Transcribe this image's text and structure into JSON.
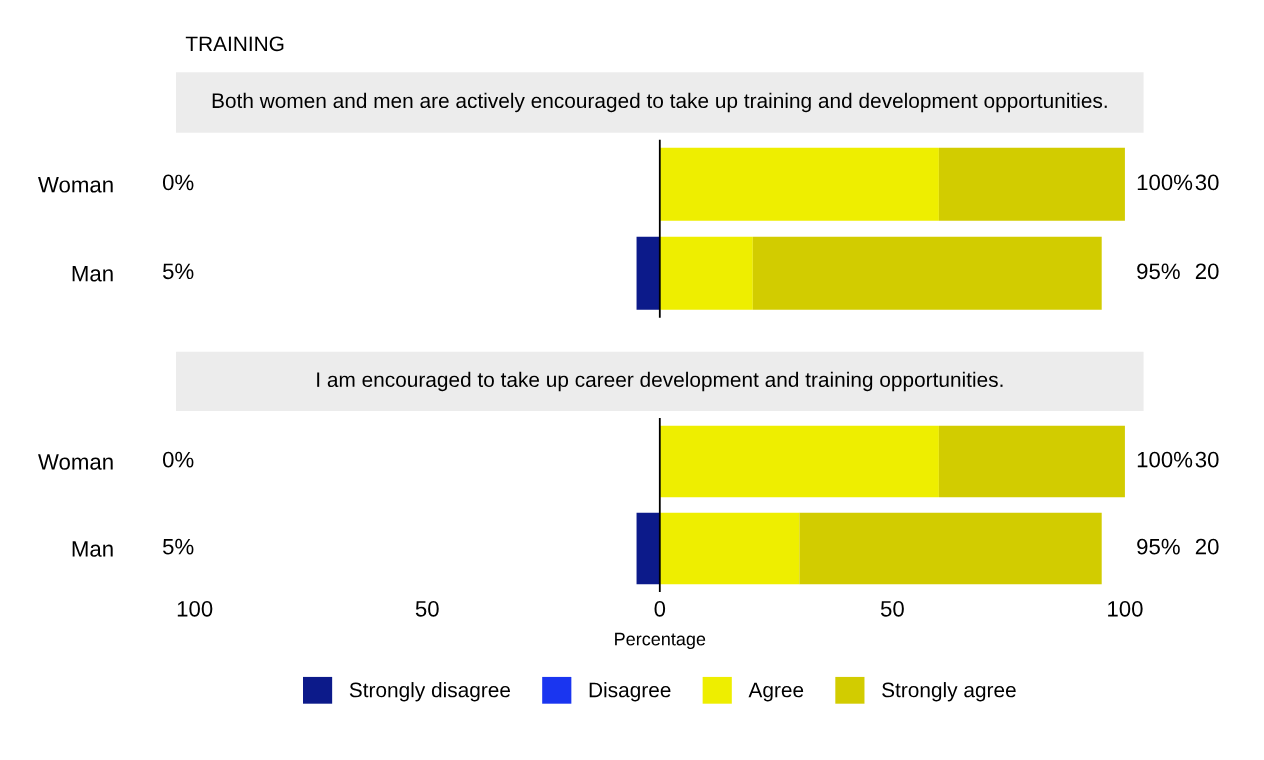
{
  "chart_data": [
    {
      "type": "bar",
      "orientation": "horizontal",
      "stacked": true,
      "title": "TRAINING",
      "subtitle": "Both women and men are actively encouraged to take up training and development opportunities.",
      "categories": [
        "Woman",
        "Man"
      ],
      "series": [
        {
          "color": "#0c1a8a",
          "values": [
            0,
            -5
          ]
        },
        {
          "color": "#1a35f0",
          "values": [
            0,
            0
          ]
        },
        {
          "color": "#eeee00",
          "values": [
            60,
            20
          ]
        },
        {
          "color": "#d2cc00",
          "values": [
            40,
            75
          ]
        }
      ],
      "xlim": [
        -100,
        100
      ],
      "tick_labels": "y",
      "ref_lines": [
        {
          "axis": "x",
          "value": 0,
          "color": "#000000"
        }
      ],
      "annotations": [
        "0%",
        "100%",
        "30",
        "5%",
        "95%",
        "20"
      ],
      "grid": false,
      "legend": false
    },
    {
      "type": "bar",
      "orientation": "horizontal",
      "stacked": true,
      "subtitle": "I am encouraged to take up career development and training opportunities.",
      "categories": [
        "Woman",
        "Man"
      ],
      "series": [
        {
          "name": "Strongly disagree",
          "color": "#0c1a8a",
          "values": [
            0,
            -5
          ]
        },
        {
          "name": "Disagree",
          "color": "#1a35f0",
          "values": [
            0,
            0
          ]
        },
        {
          "name": "Agree",
          "color": "#eeee00",
          "values": [
            60,
            30
          ]
        },
        {
          "name": "Strongly agree",
          "color": "#d2cc00",
          "values": [
            40,
            65
          ]
        }
      ],
      "xlim": [
        -100,
        100
      ],
      "xticks": [
        {
          "value": -100,
          "label": "100"
        },
        {
          "value": -50,
          "label": "50"
        },
        0,
        50,
        100
      ],
      "xlabel": "Percentage",
      "ref_lines": [
        {
          "axis": "x",
          "value": 0,
          "color": "#000000"
        }
      ],
      "annotations": [
        "0%",
        "100%",
        "30",
        "5%",
        "95%",
        "20"
      ],
      "grid": false,
      "legend": "bottom"
    }
  ]
}
